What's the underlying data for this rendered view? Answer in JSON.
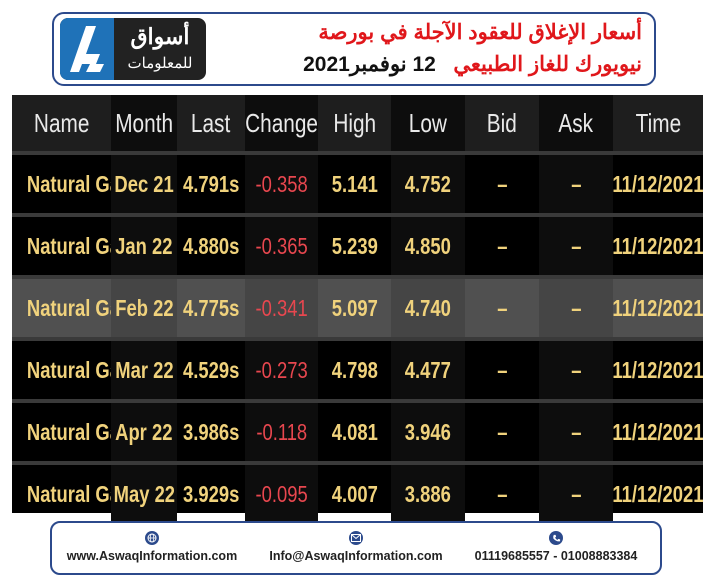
{
  "logo": {
    "name_line1": "أسواق",
    "name_line2": "للمعلومات",
    "accent_color": "#1f72b8"
  },
  "header": {
    "title_line1": "أسعار الإغلاق للعقود الآجلة في بورصة",
    "title_line2": "نيويورك للغاز الطبيعي",
    "date": "12 نوفمبر2021",
    "title_color": "#e0171b"
  },
  "table": {
    "columns": [
      "Name",
      "Month",
      "Last",
      "Change",
      "High",
      "Low",
      "Bid",
      "Ask",
      "Time"
    ],
    "rows": [
      {
        "name": "Natural Gas",
        "month": "Dec 21",
        "last": "4.791s",
        "change": "-0.358",
        "high": "5.141",
        "low": "4.752",
        "bid": "–",
        "ask": "–",
        "time": "11/12/2021"
      },
      {
        "name": "Natural Gas",
        "month": "Jan 22",
        "last": "4.880s",
        "change": "-0.365",
        "high": "5.239",
        "low": "4.850",
        "bid": "–",
        "ask": "–",
        "time": "11/12/2021"
      },
      {
        "name": "Natural Gas",
        "month": "Feb 22",
        "last": "4.775s",
        "change": "-0.341",
        "high": "5.097",
        "low": "4.740",
        "bid": "–",
        "ask": "–",
        "time": "11/12/2021"
      },
      {
        "name": "Natural Gas",
        "month": "Mar 22",
        "last": "4.529s",
        "change": "-0.273",
        "high": "4.798",
        "low": "4.477",
        "bid": "–",
        "ask": "–",
        "time": "11/12/2021"
      },
      {
        "name": "Natural Gas",
        "month": "Apr 22",
        "last": "3.986s",
        "change": "-0.118",
        "high": "4.081",
        "low": "3.946",
        "bid": "–",
        "ask": "–",
        "time": "11/12/2021"
      },
      {
        "name": "Natural Gas",
        "month": "May 22",
        "last": "3.929s",
        "change": "-0.095",
        "high": "4.007",
        "low": "3.886",
        "bid": "–",
        "ask": "–",
        "time": "11/12/2021"
      }
    ],
    "colors": {
      "value": "#f0d27c",
      "negative": "#e8474f",
      "header_text": "#e9e9e9"
    }
  },
  "footer": {
    "website": "www.AswaqInformation.com",
    "email": "Info@AswaqInformation.com",
    "phone": "01119685557 - 01008883384",
    "icons": [
      "globe-icon",
      "envelope-icon",
      "phone-icon"
    ]
  }
}
